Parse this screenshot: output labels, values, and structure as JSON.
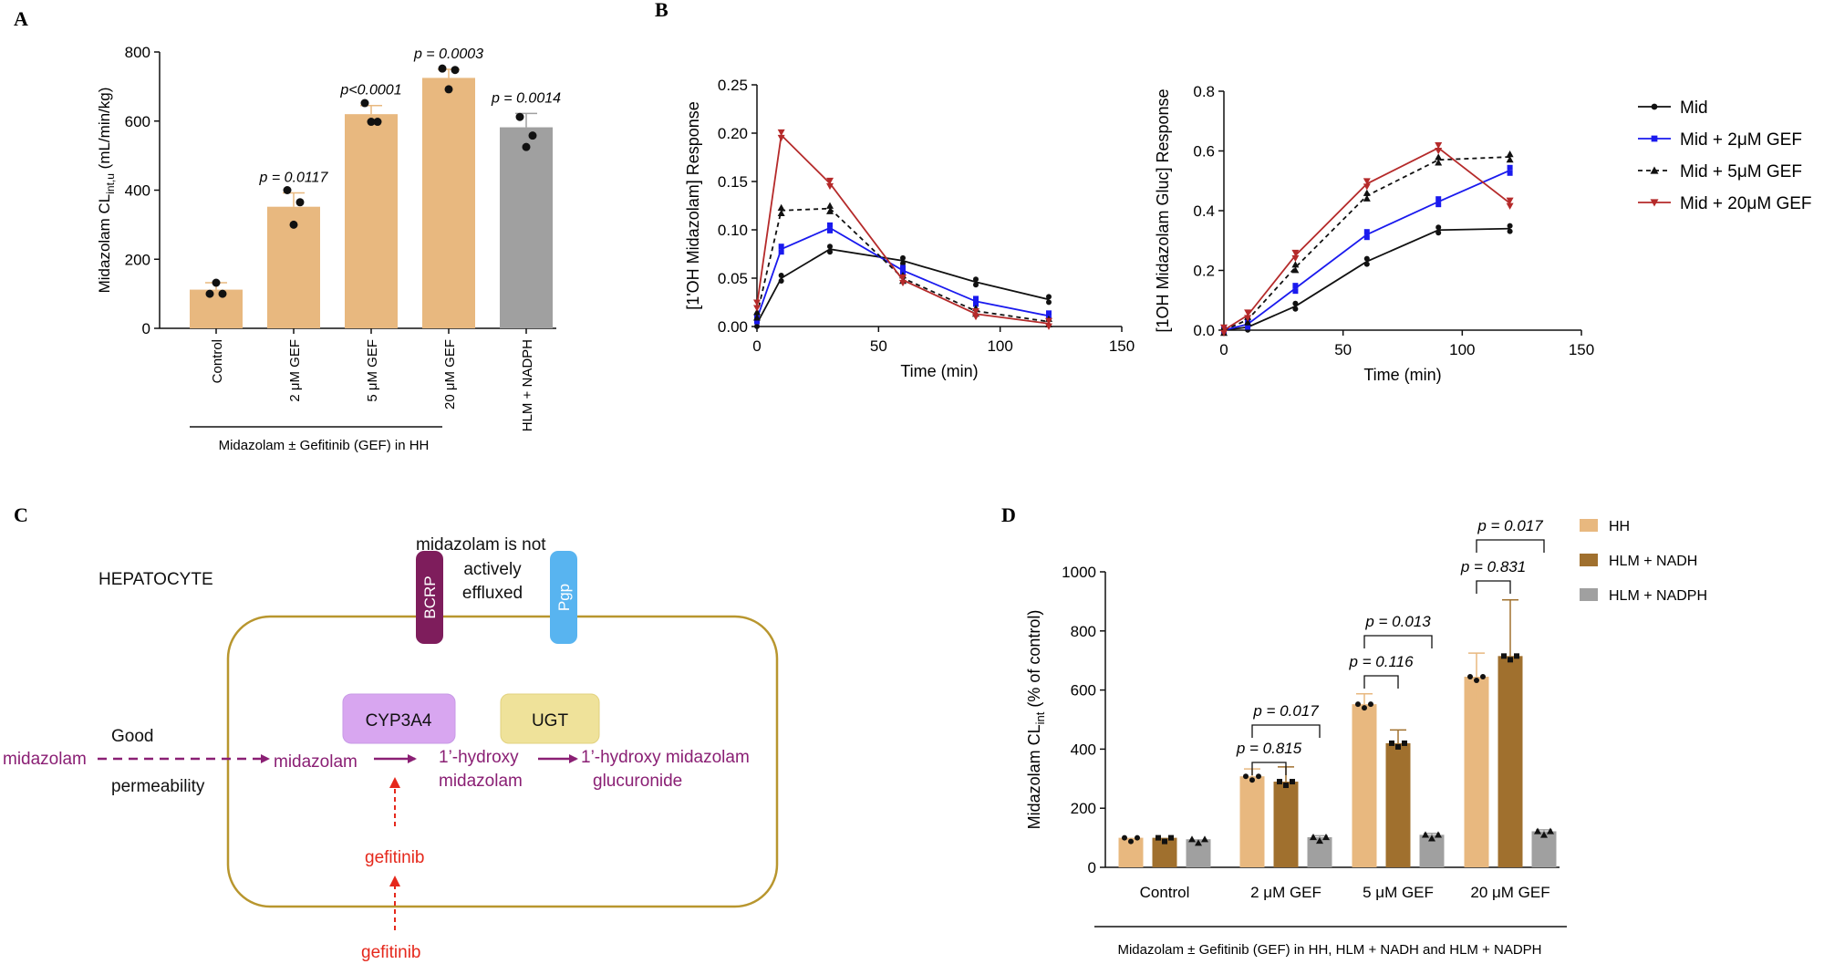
{
  "panel_labels": {
    "a": "A",
    "b": "B",
    "c": "C",
    "d": "D"
  },
  "colors": {
    "tan": "#e8b87f",
    "brown": "#a0702e",
    "grey": "#a0a0a0",
    "black": "#111111",
    "blue": "#1a1aee",
    "red": "#b52a2a",
    "purple": "#8a1f74",
    "box": "#b8962e",
    "bcrp": "#7e1d5c",
    "pgp": "#58b4f0",
    "cyp": "#d8a6f0",
    "ugt": "#efe29a",
    "gefitinib": "#e5281c"
  },
  "chart_data": [
    {
      "id": "A",
      "type": "bar",
      "ylabel_main": "Midazolam CL",
      "ylabel_sub": "int,u",
      "ylabel_unit": " (mL/min/kg)",
      "ylim": [
        0,
        800
      ],
      "yticks": [
        "0",
        "200",
        "400",
        "600",
        "800"
      ],
      "categories": [
        "Control",
        "2 μM GEF",
        "5 μM GEF",
        "20 μM GEF",
        "HLM + NADPH"
      ],
      "values": [
        112,
        352,
        620,
        725,
        582
      ],
      "errors": [
        20,
        40,
        25,
        25,
        40
      ],
      "points": [
        [
          100,
          100,
          132
        ],
        [
          400,
          365,
          300
        ],
        [
          652,
          598,
          598
        ],
        [
          752,
          748,
          692
        ],
        [
          612,
          558,
          525
        ]
      ],
      "pvalues": [
        "",
        "p = 0.0117",
        "p<0.0001",
        "p = 0.0003",
        "p = 0.0014"
      ],
      "group_label": "Midazolam ± Gefitinib (GEF) in HH"
    },
    {
      "id": "B-left",
      "type": "line",
      "xlabel": "Time (min)",
      "ylabel": "[1'OH Midazolam] Response",
      "xlim": [
        0,
        150
      ],
      "ylim": [
        0,
        0.25
      ],
      "xticks": [
        "0",
        "50",
        "100",
        "150"
      ],
      "yticks": [
        "0.00",
        "0.05",
        "0.10",
        "0.15",
        "0.20",
        "0.25"
      ],
      "x": [
        0,
        10,
        30,
        60,
        90,
        120
      ],
      "series": [
        {
          "name": "Mid",
          "values": [
            0.003,
            0.05,
            0.08,
            0.068,
            0.046,
            0.028
          ]
        },
        {
          "name": "Mid + 2μM GEF",
          "values": [
            0.008,
            0.08,
            0.102,
            0.058,
            0.026,
            0.011
          ]
        },
        {
          "name": "Mid + 5μM GEF",
          "values": [
            0.012,
            0.12,
            0.122,
            0.05,
            0.016,
            0.005
          ]
        },
        {
          "name": "Mid + 20μM GEF",
          "values": [
            0.022,
            0.198,
            0.148,
            0.048,
            0.013,
            0.003
          ]
        }
      ]
    },
    {
      "id": "B-right",
      "type": "line",
      "xlabel": "Time (min)",
      "ylabel": "[1OH Midazolam Gluc] Response",
      "xlim": [
        0,
        150
      ],
      "ylim": [
        0,
        0.8
      ],
      "xticks": [
        "0",
        "50",
        "100",
        "150"
      ],
      "yticks": [
        "0.0",
        "0.2",
        "0.4",
        "0.6",
        "0.8"
      ],
      "x": [
        0,
        10,
        30,
        60,
        90,
        120
      ],
      "series": [
        {
          "name": "Mid",
          "values": [
            0.0,
            0.01,
            0.08,
            0.23,
            0.335,
            0.34
          ]
        },
        {
          "name": "Mid + 2μM GEF",
          "values": [
            0.0,
            0.02,
            0.14,
            0.32,
            0.43,
            0.535
          ]
        },
        {
          "name": "Mid + 5μM GEF",
          "values": [
            0.0,
            0.035,
            0.21,
            0.45,
            0.57,
            0.58
          ]
        },
        {
          "name": "Mid + 20μM GEF",
          "values": [
            0.0,
            0.05,
            0.25,
            0.49,
            0.61,
            0.425
          ]
        }
      ]
    },
    {
      "id": "D",
      "type": "bar",
      "ylabel_main": "Midazolam CL",
      "ylabel_sub": "int",
      "ylabel_unit": " (% of control)",
      "ylim": [
        0,
        1000
      ],
      "yticks": [
        "0",
        "200",
        "400",
        "600",
        "800",
        "1000"
      ],
      "categories": [
        "Control",
        "2 μM GEF",
        "5 μM GEF",
        "20 μM GEF"
      ],
      "series": [
        {
          "name": "HH",
          "values": [
            100,
            308,
            552,
            645
          ],
          "errors": [
            0,
            25,
            35,
            80
          ]
        },
        {
          "name": "HLM + NADH",
          "values": [
            100,
            290,
            420,
            715
          ],
          "errors": [
            0,
            50,
            45,
            190
          ]
        },
        {
          "name": "HLM + NADPH",
          "values": [
            95,
            102,
            110,
            122
          ],
          "errors": [
            0,
            5,
            5,
            5
          ]
        }
      ],
      "pvalues": [
        {
          "text": "p = 0.815",
          "category": 1
        },
        {
          "text": "p = 0.017",
          "category": 1
        },
        {
          "text": "p = 0.116",
          "category": 2
        },
        {
          "text": "p = 0.013",
          "category": 2
        },
        {
          "text": "p = 0.831",
          "category": 3
        },
        {
          "text": "p = 0.017",
          "category": 3
        }
      ],
      "group_label": "Midazolam ± Gefitinib (GEF) in HH, HLM + NADH and HLM + NADPH"
    }
  ],
  "legend_b": [
    "Mid",
    "Mid + 2μM GEF",
    "Mid + 5μM GEF",
    "Mid + 20μM GEF"
  ],
  "diagram_c": {
    "hepatocyte": "HEPATOCYTE",
    "bcrp": "BCRP",
    "pgp": "Pgp",
    "efflux_line1": "midazolam  is not",
    "efflux_line2": "actively",
    "efflux_line3": "effluxed",
    "cyp": "CYP3A4",
    "ugt": "UGT",
    "midazolam_out": "midazolam",
    "good": "Good",
    "permeability": "permeability",
    "midazolam_in": "midazolam",
    "hydroxy_line1": "1’-hydroxy",
    "hydroxy_line2": "midazolam",
    "gluc_line1": "1’-hydroxy midazolam",
    "gluc_line2": "glucuronide",
    "gef_in": "gefitinib",
    "gef_out": "gefitinib"
  }
}
